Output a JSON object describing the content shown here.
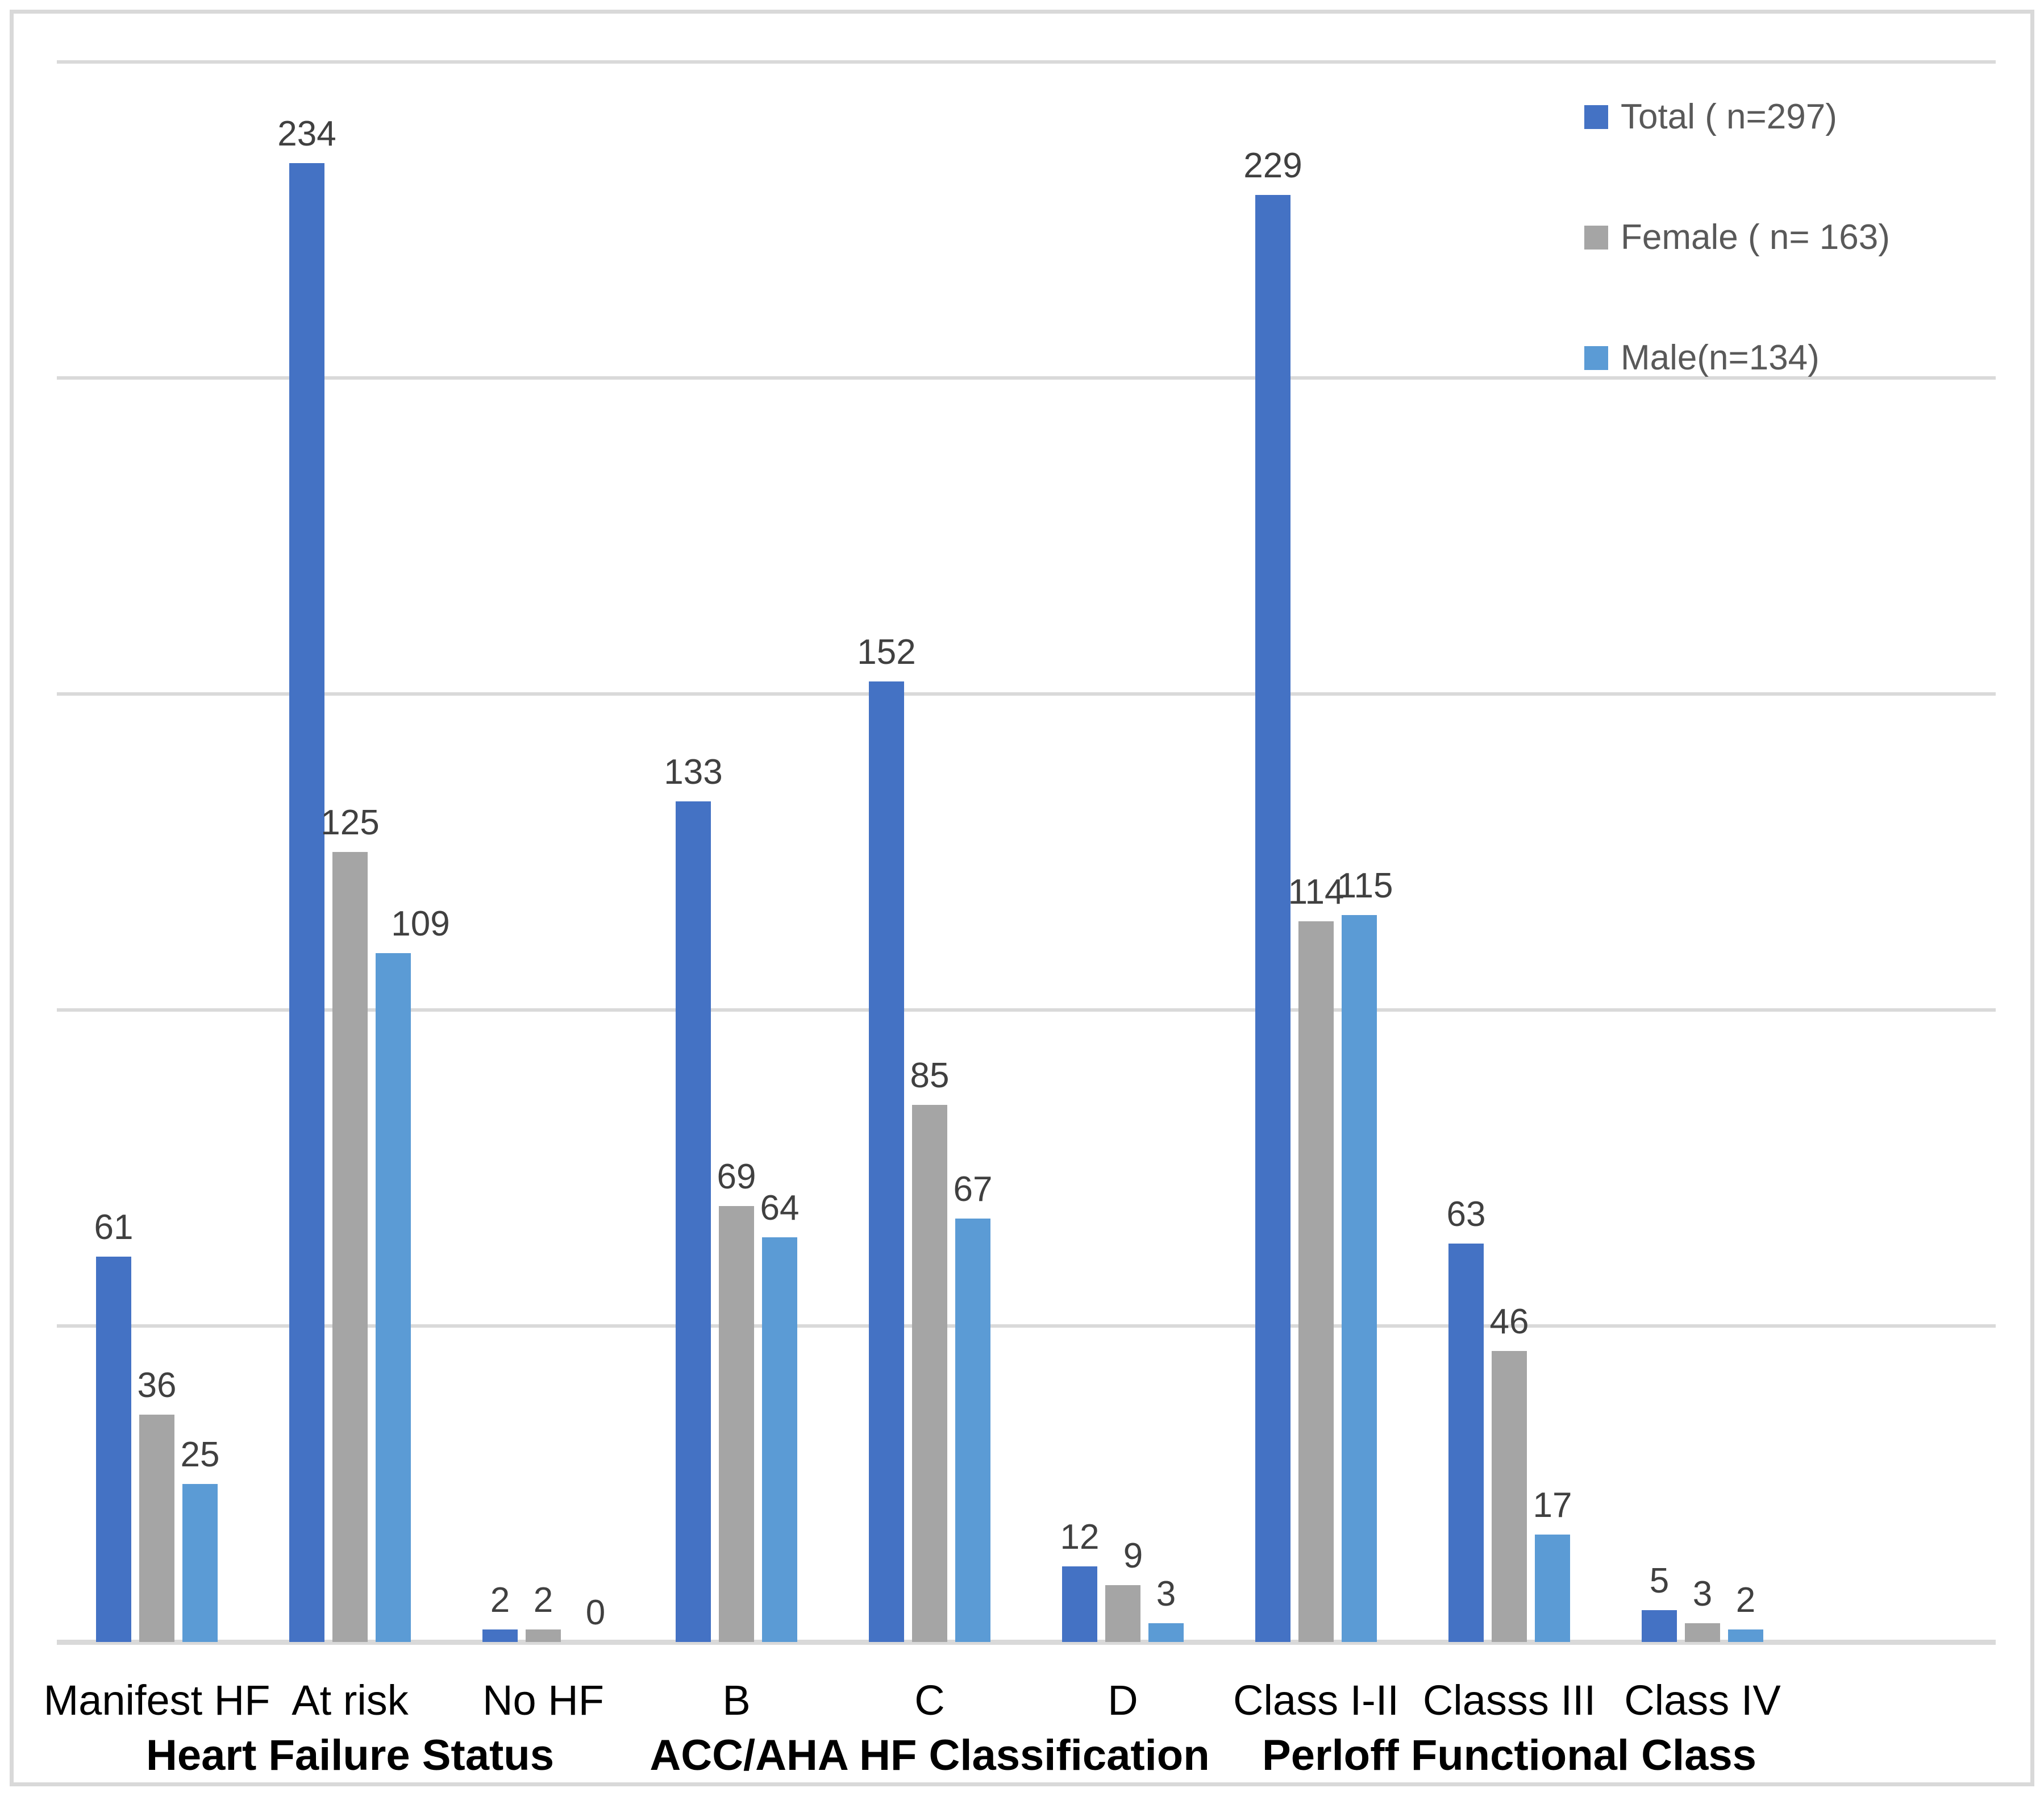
{
  "chart_data": {
    "type": "bar",
    "title": "",
    "groups": [
      {
        "label": "Heart Failure Status",
        "categories": [
          "Manifest HF",
          "At risk",
          "No HF"
        ]
      },
      {
        "label": "ACC/AHA HF Classification",
        "categories": [
          "B",
          "C",
          "D"
        ]
      },
      {
        "label": "Perloff Functional Class",
        "categories": [
          "Class I-II",
          "Classs III",
          "Class IV"
        ]
      }
    ],
    "categories_flat": [
      "Manifest HF",
      "At risk",
      "No HF",
      "B",
      "C",
      "D",
      "Class I-II",
      "Classs III",
      "Class IV"
    ],
    "series": [
      {
        "name": "Total ( n=297)",
        "color": "#4472C4",
        "values": [
          61,
          234,
          2,
          133,
          152,
          12,
          229,
          63,
          5
        ]
      },
      {
        "name": "Female ( n= 163)",
        "color": "#A5A5A5",
        "values": [
          36,
          125,
          2,
          69,
          85,
          9,
          114,
          46,
          3
        ]
      },
      {
        "name": "Male(n=134)",
        "color": "#5B9BD5",
        "values": [
          25,
          109,
          0,
          64,
          67,
          3,
          115,
          17,
          2
        ]
      }
    ],
    "ylim": [
      0,
      250
    ],
    "gridline_step": 50,
    "grid": true,
    "y_axis_labels_visible": false,
    "data_labels_visible": true,
    "legend_position": "top-right",
    "xlabel": "",
    "ylabel": ""
  },
  "colors": {
    "grid": "#D9D9D9",
    "frame": "#D9D9D9",
    "value_label": "#404040",
    "legend_text": "#595959",
    "background": "#FFFFFF"
  }
}
